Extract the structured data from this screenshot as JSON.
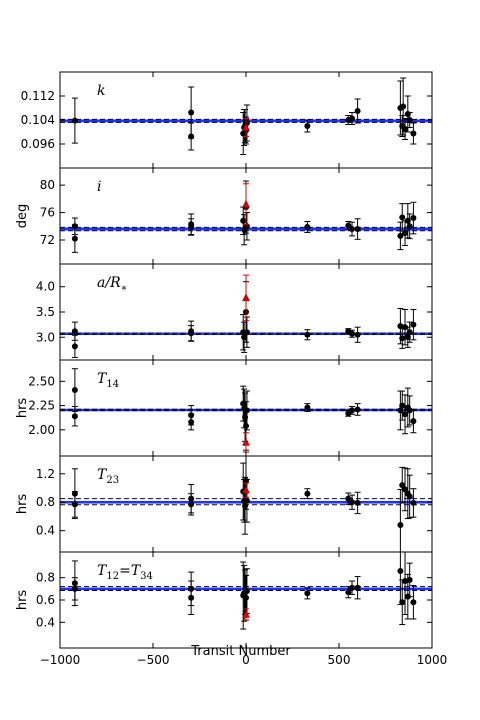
{
  "chart_data": {
    "type": "scatter",
    "xlabel": "Transit Number",
    "xlim": [
      -1000,
      1000
    ],
    "xticks": [
      -1000,
      -500,
      0,
      500,
      1000
    ],
    "xtick_labels": [
      "−1000",
      "−500",
      "0",
      "500",
      "1000"
    ],
    "colors": {
      "points": "#000000",
      "highlight": "#dd0000",
      "band": "#2233ee",
      "band_fill": "#aab4ff",
      "dashed": "#000044"
    },
    "panels": [
      {
        "label": "k",
        "ylabel": "",
        "ylim": [
          0.088,
          0.12
        ],
        "yticks": [
          0.096,
          0.104,
          0.112
        ],
        "ytick_labels": [
          "0.096",
          "0.104",
          "0.112"
        ],
        "fit": 0.1037,
        "band": [
          0.1031,
          0.1043
        ],
        "dashed": [
          0.1032,
          0.1042
        ],
        "points": [
          {
            "x": -920,
            "y": 0.1038,
            "err": 0.0075
          },
          {
            "x": -295,
            "y": 0.1065,
            "err": 0.0085
          },
          {
            "x": -295,
            "y": 0.0985,
            "err": 0.0045
          },
          {
            "x": -15,
            "y": 0.0995,
            "err": 0.007
          },
          {
            "x": -10,
            "y": 0.1015,
            "err": 0.006
          },
          {
            "x": -5,
            "y": 0.102,
            "err": 0.0055
          },
          {
            "x": 0,
            "y": 0.1005,
            "err": 0.0045
          },
          {
            "x": 5,
            "y": 0.103,
            "err": 0.006
          },
          {
            "x": 330,
            "y": 0.102,
            "err": 0.002
          },
          {
            "x": 550,
            "y": 0.104,
            "err": 0.0015
          },
          {
            "x": 570,
            "y": 0.1045,
            "err": 0.002
          },
          {
            "x": 600,
            "y": 0.107,
            "err": 0.004
          },
          {
            "x": 830,
            "y": 0.108,
            "err": 0.009
          },
          {
            "x": 840,
            "y": 0.102,
            "err": 0.0035
          },
          {
            "x": 845,
            "y": 0.1085,
            "err": 0.0095
          },
          {
            "x": 855,
            "y": 0.101,
            "err": 0.0035
          },
          {
            "x": 870,
            "y": 0.106,
            "err": 0.006
          },
          {
            "x": 880,
            "y": 0.104,
            "err": 0.0025
          },
          {
            "x": 900,
            "y": 0.0995,
            "err": 0.0035
          }
        ],
        "highlights": [
          {
            "x": 0,
            "y": 0.1015,
            "err": 0.003
          }
        ]
      },
      {
        "label": "i",
        "ylabel": "deg",
        "ylim": [
          68.5,
          82.5
        ],
        "yticks": [
          72,
          76,
          80
        ],
        "ytick_labels": [
          "72",
          "76",
          "80"
        ],
        "fit": 73.6,
        "band": [
          73.3,
          73.9
        ],
        "dashed": [
          73.35,
          73.85
        ],
        "points": [
          {
            "x": -920,
            "y": 74.0,
            "err": 1.2
          },
          {
            "x": -920,
            "y": 72.2,
            "err": 2.0
          },
          {
            "x": -295,
            "y": 74.3,
            "err": 1.5
          },
          {
            "x": -295,
            "y": 73.9,
            "err": 1.2
          },
          {
            "x": -15,
            "y": 74.8,
            "err": 2.0
          },
          {
            "x": -10,
            "y": 73.5,
            "err": 2.2
          },
          {
            "x": 0,
            "y": 76.8,
            "err": 3.8
          },
          {
            "x": 5,
            "y": 74.0,
            "err": 2.0
          },
          {
            "x": 330,
            "y": 73.9,
            "err": 0.8
          },
          {
            "x": 550,
            "y": 74.1,
            "err": 0.6
          },
          {
            "x": 570,
            "y": 73.6,
            "err": 1.0
          },
          {
            "x": 600,
            "y": 73.6,
            "err": 1.5
          },
          {
            "x": 830,
            "y": 72.6,
            "err": 2.0
          },
          {
            "x": 840,
            "y": 75.3,
            "err": 2.0
          },
          {
            "x": 855,
            "y": 73.0,
            "err": 1.8
          },
          {
            "x": 870,
            "y": 74.8,
            "err": 2.5
          },
          {
            "x": 880,
            "y": 74.0,
            "err": 1.8
          },
          {
            "x": 900,
            "y": 75.2,
            "err": 2.3
          }
        ],
        "highlights": [
          {
            "x": 0,
            "y": 77.2,
            "err": 3.0
          }
        ]
      },
      {
        "label": "a/R*",
        "ylabel": "",
        "ylim": [
          2.55,
          4.45
        ],
        "yticks": [
          3.0,
          3.5,
          4.0
        ],
        "ytick_labels": [
          "3.0",
          "3.5",
          "4.0"
        ],
        "fit": 3.07,
        "band": [
          3.05,
          3.09
        ],
        "dashed": [
          3.055,
          3.085
        ],
        "points": [
          {
            "x": -920,
            "y": 3.12,
            "err": 0.18
          },
          {
            "x": -920,
            "y": 2.82,
            "err": 0.22
          },
          {
            "x": -295,
            "y": 3.12,
            "err": 0.2
          },
          {
            "x": -295,
            "y": 3.08,
            "err": 0.15
          },
          {
            "x": -15,
            "y": 3.1,
            "err": 0.35
          },
          {
            "x": -10,
            "y": 3.0,
            "err": 0.3
          },
          {
            "x": 0,
            "y": 3.5,
            "err": 0.6
          },
          {
            "x": 5,
            "y": 3.1,
            "err": 0.3
          },
          {
            "x": 330,
            "y": 3.05,
            "err": 0.1
          },
          {
            "x": 550,
            "y": 3.12,
            "err": 0.05
          },
          {
            "x": 570,
            "y": 3.07,
            "err": 0.07
          },
          {
            "x": 600,
            "y": 3.05,
            "err": 0.15
          },
          {
            "x": 830,
            "y": 3.22,
            "err": 0.35
          },
          {
            "x": 840,
            "y": 2.98,
            "err": 0.2
          },
          {
            "x": 855,
            "y": 3.2,
            "err": 0.35
          },
          {
            "x": 870,
            "y": 3.0,
            "err": 0.2
          },
          {
            "x": 880,
            "y": 3.1,
            "err": 0.2
          },
          {
            "x": 900,
            "y": 3.25,
            "err": 0.3
          }
        ],
        "highlights": [
          {
            "x": 0,
            "y": 3.78,
            "err": 0.45
          }
        ]
      },
      {
        "label": "T14",
        "ylabel": "hrs",
        "ylim": [
          1.73,
          2.72
        ],
        "yticks": [
          2.0,
          2.25,
          2.5
        ],
        "ytick_labels": [
          "2.00",
          "2.25",
          "2.50"
        ],
        "fit": 2.205,
        "band": [
          2.195,
          2.215
        ],
        "dashed": [
          2.198,
          2.212
        ],
        "points": [
          {
            "x": -920,
            "y": 2.41,
            "err": 0.22
          },
          {
            "x": -920,
            "y": 2.14,
            "err": 0.1
          },
          {
            "x": -295,
            "y": 2.15,
            "err": 0.1
          },
          {
            "x": -295,
            "y": 2.08,
            "err": 0.08
          },
          {
            "x": -15,
            "y": 2.27,
            "err": 0.18
          },
          {
            "x": -10,
            "y": 2.22,
            "err": 0.2
          },
          {
            "x": -5,
            "y": 2.13,
            "err": 0.25
          },
          {
            "x": 0,
            "y": 2.04,
            "err": 0.25
          },
          {
            "x": 5,
            "y": 2.2,
            "err": 0.2
          },
          {
            "x": 330,
            "y": 2.23,
            "err": 0.04
          },
          {
            "x": 550,
            "y": 2.17,
            "err": 0.03
          },
          {
            "x": 570,
            "y": 2.2,
            "err": 0.04
          },
          {
            "x": 600,
            "y": 2.21,
            "err": 0.06
          },
          {
            "x": 830,
            "y": 2.2,
            "err": 0.2
          },
          {
            "x": 840,
            "y": 2.25,
            "err": 0.15
          },
          {
            "x": 855,
            "y": 2.16,
            "err": 0.2
          },
          {
            "x": 870,
            "y": 2.23,
            "err": 0.2
          },
          {
            "x": 880,
            "y": 2.2,
            "err": 0.15
          },
          {
            "x": 900,
            "y": 2.09,
            "err": 0.12
          }
        ],
        "highlights": [
          {
            "x": 0,
            "y": 1.87,
            "err": 0.1
          }
        ]
      },
      {
        "label": "T23",
        "ylabel": "hrs",
        "ylim": [
          0.1,
          1.45
        ],
        "yticks": [
          0.4,
          0.8,
          1.2
        ],
        "ytick_labels": [
          "0.4",
          "0.8",
          "1.2"
        ],
        "fit": 0.8,
        "band": [
          0.78,
          0.82
        ],
        "dashed": [
          0.765,
          0.85
        ],
        "points": [
          {
            "x": -920,
            "y": 0.92,
            "err": 0.35
          },
          {
            "x": -920,
            "y": 0.77,
            "err": 0.18
          },
          {
            "x": -295,
            "y": 0.85,
            "err": 0.2
          },
          {
            "x": -295,
            "y": 0.77,
            "err": 0.15
          },
          {
            "x": -15,
            "y": 0.95,
            "err": 0.4
          },
          {
            "x": -10,
            "y": 0.82,
            "err": 0.3
          },
          {
            "x": -5,
            "y": 0.75,
            "err": 0.4
          },
          {
            "x": 0,
            "y": 1.1,
            "err": 0.4
          },
          {
            "x": 5,
            "y": 0.82,
            "err": 0.3
          },
          {
            "x": 330,
            "y": 0.92,
            "err": 0.07
          },
          {
            "x": 550,
            "y": 0.85,
            "err": 0.08
          },
          {
            "x": 570,
            "y": 0.8,
            "err": 0.1
          },
          {
            "x": 600,
            "y": 0.79,
            "err": 0.15
          },
          {
            "x": 830,
            "y": 0.48,
            "err": 0.5
          },
          {
            "x": 840,
            "y": 1.04,
            "err": 0.25
          },
          {
            "x": 855,
            "y": 0.98,
            "err": 0.3
          },
          {
            "x": 870,
            "y": 0.92,
            "err": 0.35
          },
          {
            "x": 880,
            "y": 0.88,
            "err": 0.3
          },
          {
            "x": 900,
            "y": 0.79,
            "err": 0.2
          }
        ],
        "highlights": [
          {
            "x": 0,
            "y": 0.97,
            "err": 0.1
          }
        ]
      },
      {
        "label": "T12=T34",
        "ylabel": "hrs",
        "ylim": [
          0.17,
          1.03
        ],
        "yticks": [
          0.4,
          0.6,
          0.8
        ],
        "ytick_labels": [
          "0.4",
          "0.6",
          "0.8"
        ],
        "fit": 0.7,
        "band": [
          0.69,
          0.71
        ],
        "dashed": [
          0.685,
          0.72
        ],
        "points": [
          {
            "x": -920,
            "y": 0.75,
            "err": 0.2
          },
          {
            "x": -920,
            "y": 0.7,
            "err": 0.1
          },
          {
            "x": -295,
            "y": 0.7,
            "err": 0.15
          },
          {
            "x": -295,
            "y": 0.62,
            "err": 0.15
          },
          {
            "x": -15,
            "y": 0.64,
            "err": 0.3
          },
          {
            "x": -10,
            "y": 0.66,
            "err": 0.25
          },
          {
            "x": -5,
            "y": 0.67,
            "err": 0.2
          },
          {
            "x": 0,
            "y": 0.62,
            "err": 0.2
          },
          {
            "x": 5,
            "y": 0.68,
            "err": 0.2
          },
          {
            "x": 330,
            "y": 0.66,
            "err": 0.05
          },
          {
            "x": 550,
            "y": 0.67,
            "err": 0.05
          },
          {
            "x": 570,
            "y": 0.71,
            "err": 0.06
          },
          {
            "x": 600,
            "y": 0.71,
            "err": 0.1
          },
          {
            "x": 830,
            "y": 0.86,
            "err": 0.3
          },
          {
            "x": 840,
            "y": 0.58,
            "err": 0.2
          },
          {
            "x": 855,
            "y": 0.77,
            "err": 0.3
          },
          {
            "x": 870,
            "y": 0.63,
            "err": 0.2
          },
          {
            "x": 880,
            "y": 0.78,
            "err": 0.15
          },
          {
            "x": 900,
            "y": 0.58,
            "err": 0.15
          }
        ],
        "highlights": [
          {
            "x": 0,
            "y": 0.47,
            "err": 0.05
          }
        ]
      }
    ]
  }
}
